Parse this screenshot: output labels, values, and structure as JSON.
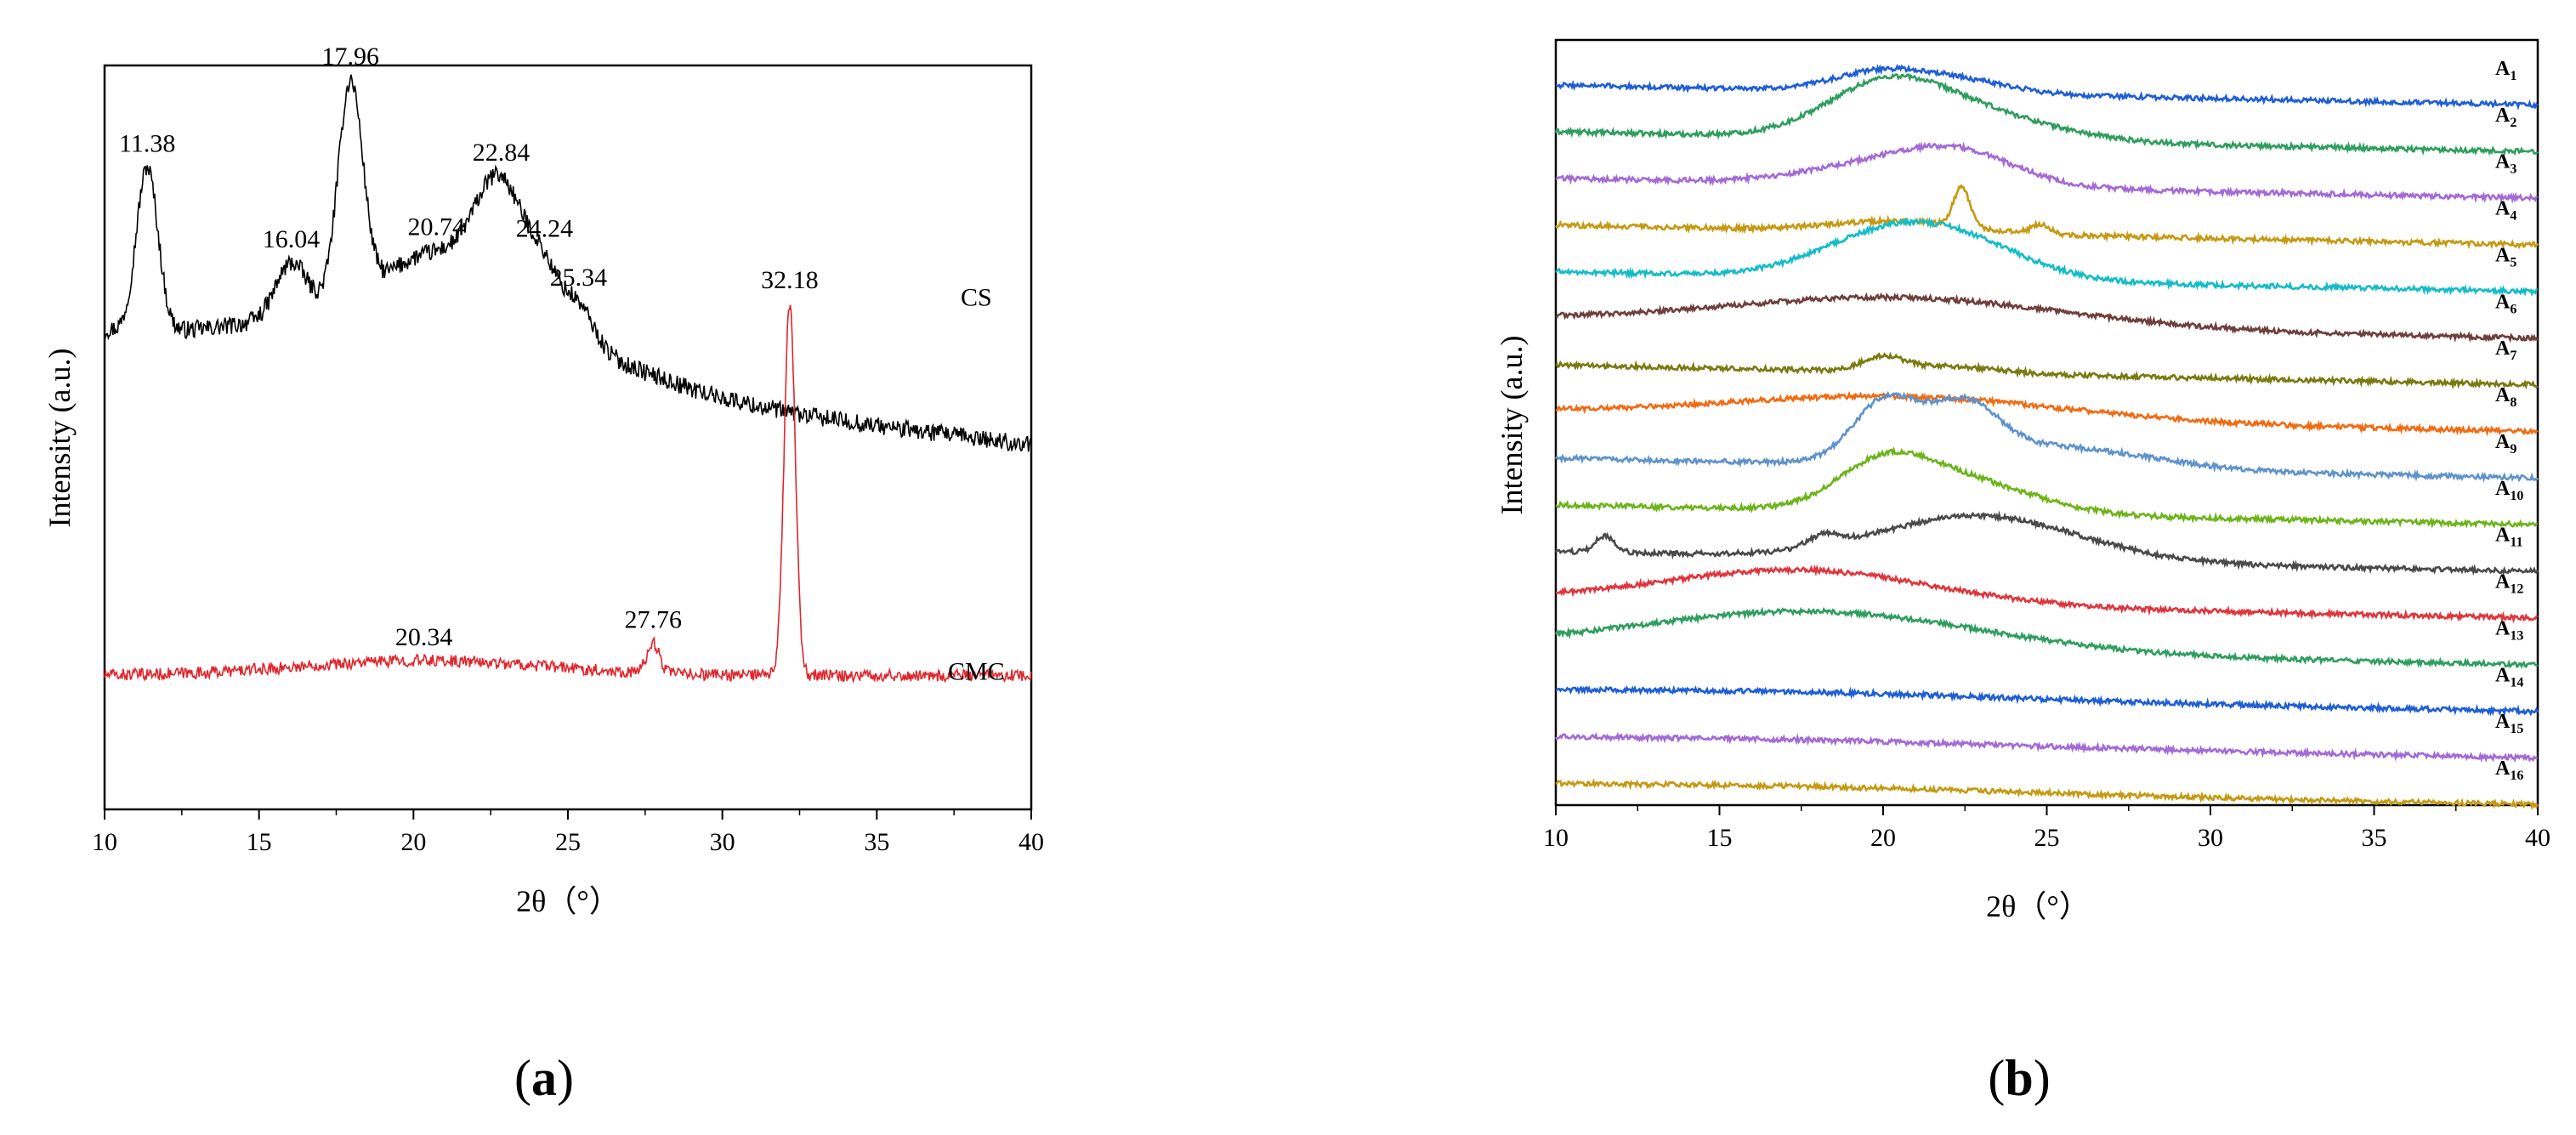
{
  "figure": {
    "panels": [
      {
        "caption_letter": "a"
      },
      {
        "caption_letter": "b"
      }
    ]
  },
  "chart_data": [
    {
      "type": "line",
      "panel": "a",
      "xlabel": "2θ（°）",
      "ylabel": "Intensity (a.u.)",
      "xlim": [
        10,
        40
      ],
      "xticks": [
        10,
        15,
        20,
        25,
        30,
        35,
        40
      ],
      "yticks_shown": false,
      "series": [
        {
          "name": "CS",
          "color": "#000000",
          "baseline": 0.64,
          "peaks": [
            {
              "x": 11.38,
              "height": 0.22,
              "width": 0.35,
              "label": "11.38"
            },
            {
              "x": 16.04,
              "height": 0.07,
              "width": 0.5,
              "label": "16.04"
            },
            {
              "x": 17.96,
              "height": 0.29,
              "width": 0.4,
              "label": "17.96"
            },
            {
              "x": 20.74,
              "height": 0.06,
              "width": 1.5,
              "label": "20.74"
            },
            {
              "x": 22.84,
              "height": 0.16,
              "width": 0.8,
              "label": "22.84"
            },
            {
              "x": 24.24,
              "height": 0.06,
              "width": 0.5,
              "label": "24.24"
            },
            {
              "x": 25.34,
              "height": 0.05,
              "width": 0.5,
              "label": "25.34"
            }
          ],
          "noise": 0.012
        },
        {
          "name": "CMC",
          "color": "#e0262c",
          "baseline": 0.18,
          "peaks": [
            {
              "x": 20.34,
              "height": 0.02,
              "width": 4.0,
              "label": "20.34"
            },
            {
              "x": 27.76,
              "height": 0.04,
              "width": 0.2,
              "label": "27.76"
            },
            {
              "x": 32.18,
              "height": 0.5,
              "width": 0.18,
              "label": "32.18"
            }
          ],
          "noise": 0.008
        }
      ]
    },
    {
      "type": "line",
      "panel": "b",
      "xlabel": "2θ（°）",
      "ylabel": "Intensity (a.u.)",
      "xlim": [
        10,
        40
      ],
      "xticks": [
        10,
        15,
        20,
        25,
        30,
        35,
        40
      ],
      "yticks_shown": false,
      "series": [
        {
          "name": "A",
          "sub": "1",
          "color": "#1f5fd6",
          "peaks": [
            {
              "x": 20,
              "height": 0.018,
              "width": 1.5
            },
            {
              "x": 22.5,
              "height": 0.01,
              "width": 1.5
            }
          ]
        },
        {
          "name": "A",
          "sub": "2",
          "color": "#2e9e5e",
          "peaks": [
            {
              "x": 20,
              "height": 0.04,
              "width": 1.8
            },
            {
              "x": 22.5,
              "height": 0.025,
              "width": 2.5
            }
          ]
        },
        {
          "name": "A",
          "sub": "3",
          "color": "#a36ad8",
          "peaks": [
            {
              "x": 20.8,
              "height": 0.025,
              "width": 2.5
            },
            {
              "x": 22.5,
              "height": 0.015,
              "width": 1.5
            }
          ]
        },
        {
          "name": "A",
          "sub": "4",
          "color": "#c59a12",
          "peaks": [
            {
              "x": 22.4,
              "height": 0.035,
              "width": 0.25
            },
            {
              "x": 20.5,
              "height": 0.01,
              "width": 2
            },
            {
              "x": 24.8,
              "height": 0.008,
              "width": 0.3
            }
          ]
        },
        {
          "name": "A",
          "sub": "5",
          "color": "#14bcc8",
          "peaks": [
            {
              "x": 20.3,
              "height": 0.04,
              "width": 2.2
            },
            {
              "x": 22.8,
              "height": 0.02,
              "width": 2
            }
          ]
        },
        {
          "name": "A",
          "sub": "6",
          "color": "#6f3f3c",
          "peaks": [
            {
              "x": 20.5,
              "height": 0.025,
              "width": 5
            }
          ]
        },
        {
          "name": "A",
          "sub": "7",
          "color": "#7a7a10",
          "peaks": [
            {
              "x": 20,
              "height": 0.012,
              "width": 0.6
            },
            {
              "x": 22,
              "height": 0.006,
              "width": 1.5
            }
          ]
        },
        {
          "name": "A",
          "sub": "8",
          "color": "#f26a10",
          "peaks": [
            {
              "x": 20.5,
              "height": 0.02,
              "width": 5
            }
          ]
        },
        {
          "name": "A",
          "sub": "9",
          "color": "#5f93cc",
          "peaks": [
            {
              "x": 20.1,
              "height": 0.055,
              "width": 1.0
            },
            {
              "x": 22.5,
              "height": 0.045,
              "width": 1.0
            },
            {
              "x": 25,
              "height": 0.02,
              "width": 3
            }
          ]
        },
        {
          "name": "A",
          "sub": "10",
          "color": "#6cb41a",
          "peaks": [
            {
              "x": 20,
              "height": 0.035,
              "width": 1.4
            },
            {
              "x": 22.3,
              "height": 0.03,
              "width": 2.2
            }
          ]
        },
        {
          "name": "A",
          "sub": "11",
          "color": "#4a4a4a",
          "peaks": [
            {
              "x": 11.5,
              "height": 0.015,
              "width": 0.3
            },
            {
              "x": 18.2,
              "height": 0.01,
              "width": 0.5
            },
            {
              "x": 23,
              "height": 0.04,
              "width": 3
            }
          ]
        },
        {
          "name": "A",
          "sub": "12",
          "color": "#e0353d",
          "peaks": [
            {
              "x": 17.5,
              "height": 0.03,
              "width": 4
            }
          ]
        },
        {
          "name": "A",
          "sub": "13",
          "color": "#2e9e5e",
          "peaks": [
            {
              "x": 18,
              "height": 0.035,
              "width": 5
            }
          ]
        },
        {
          "name": "A",
          "sub": "14",
          "color": "#1f5fd6",
          "peaks": [
            {
              "x": 18,
              "height": 0.004,
              "width": 6
            }
          ]
        },
        {
          "name": "A",
          "sub": "15",
          "color": "#a36ad8",
          "peaks": [
            {
              "x": 18,
              "height": 0.003,
              "width": 6
            }
          ]
        },
        {
          "name": "A",
          "sub": "16",
          "color": "#c59a12",
          "peaks": [
            {
              "x": 18,
              "height": 0.003,
              "width": 6
            }
          ]
        }
      ]
    }
  ]
}
